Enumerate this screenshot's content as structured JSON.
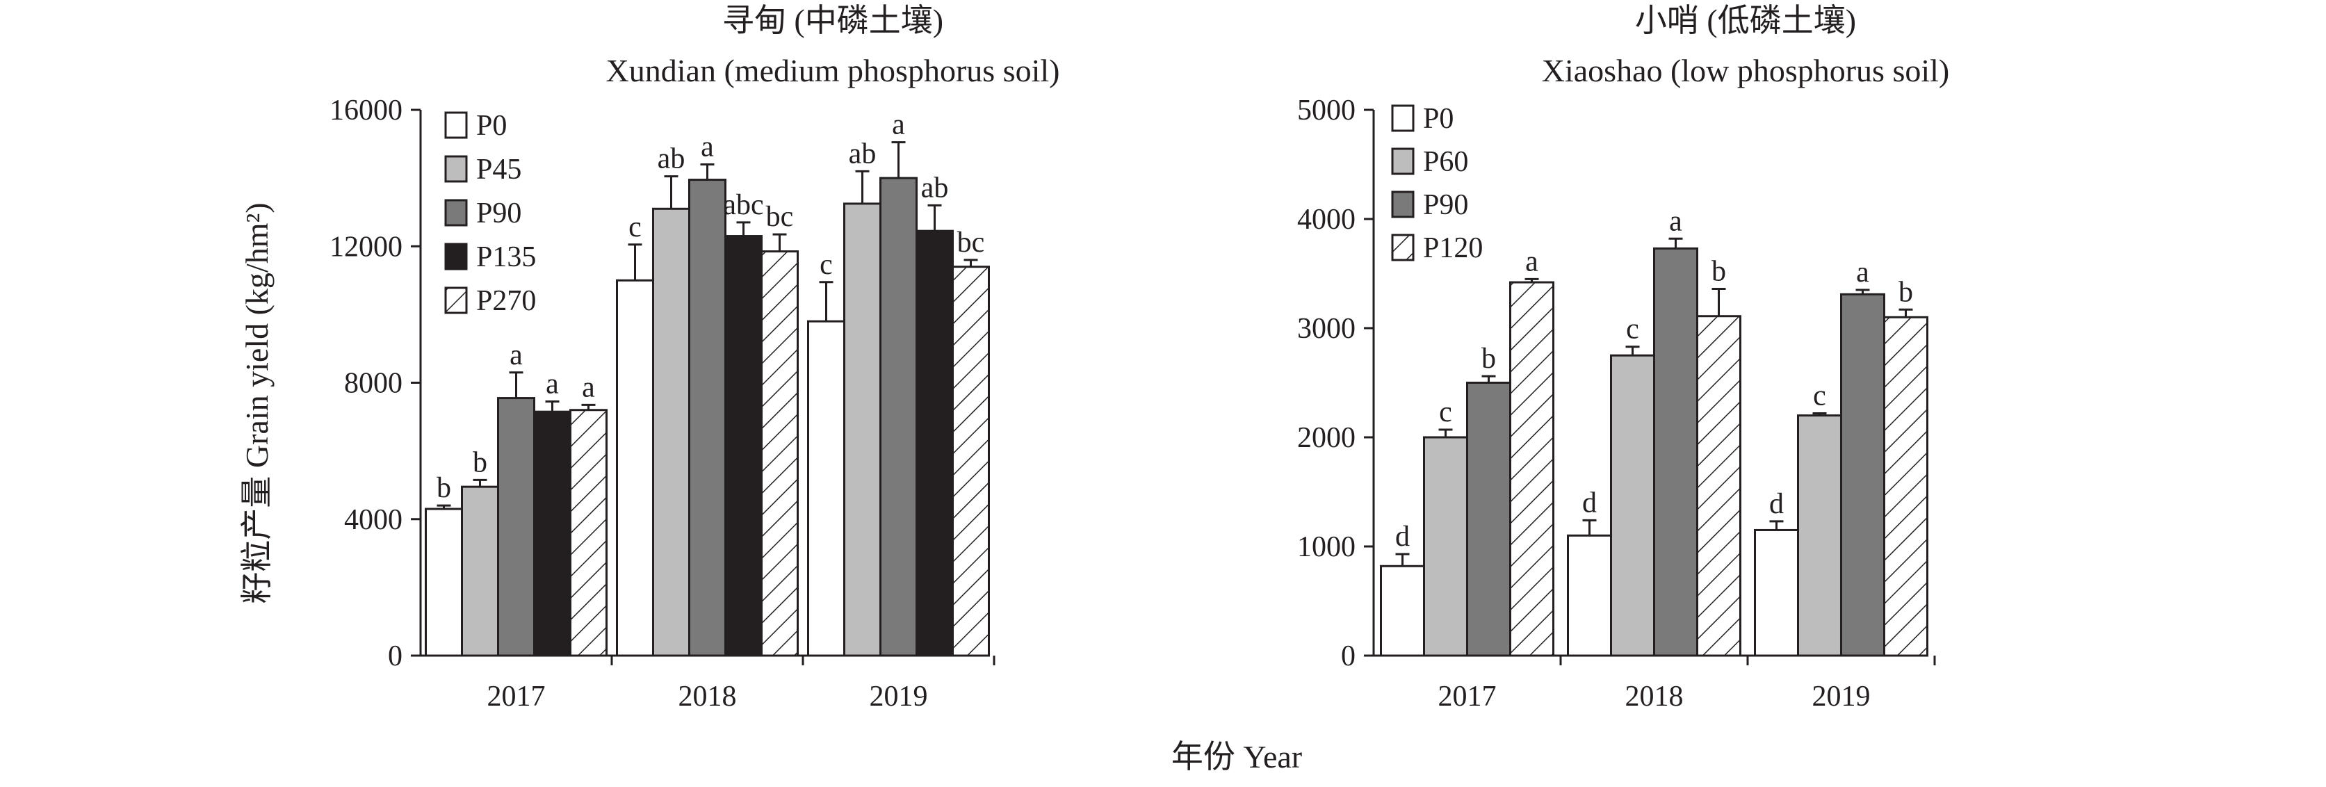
{
  "figure": {
    "shared_xlabel": "年份 Year",
    "shared_ylabel": "籽粒产量 Grain yield (kg/hm²)"
  },
  "chart_data": [
    {
      "type": "bar",
      "title": "寻甸 (中磷土壤)",
      "subtitle": "Xundian (medium phosphorus soil)",
      "xlabel": "年份 Year",
      "ylabel": "籽粒产量 Grain yield (kg/hm²)",
      "categories": [
        "2017",
        "2018",
        "2019"
      ],
      "ylim": [
        0,
        16000
      ],
      "yticks": [
        "0",
        "4000",
        "8000",
        "12000",
        "16000"
      ],
      "legend_position": "top-left",
      "series": [
        {
          "name": "P0",
          "fill": "white",
          "values": [
            4300,
            11000,
            9800
          ],
          "errors": [
            100,
            1050,
            1150
          ],
          "letters": [
            "b",
            "c",
            "c"
          ]
        },
        {
          "name": "P45",
          "fill": "lightgray",
          "values": [
            4950,
            13100,
            13250
          ],
          "errors": [
            200,
            950,
            950
          ],
          "letters": [
            "b",
            "ab",
            "ab"
          ]
        },
        {
          "name": "P90",
          "fill": "darkgray",
          "values": [
            7550,
            13950,
            14000
          ],
          "errors": [
            750,
            450,
            1050
          ],
          "letters": [
            "a",
            "a",
            "a"
          ]
        },
        {
          "name": "P135",
          "fill": "black",
          "values": [
            7150,
            12300,
            12450
          ],
          "errors": [
            300,
            400,
            750
          ],
          "letters": [
            "a",
            "abc",
            "ab"
          ]
        },
        {
          "name": "P270",
          "fill": "hatch",
          "values": [
            7200,
            11850,
            11400
          ],
          "errors": [
            150,
            500,
            200
          ],
          "letters": [
            "a",
            "bc",
            "bc"
          ]
        }
      ]
    },
    {
      "type": "bar",
      "title": "小哨 (低磷土壤)",
      "subtitle": "Xiaoshao (low phosphorus soil)",
      "xlabel": "年份 Year",
      "ylabel": "",
      "categories": [
        "2017",
        "2018",
        "2019"
      ],
      "ylim": [
        0,
        5000
      ],
      "yticks": [
        "0",
        "1000",
        "2000",
        "3000",
        "4000",
        "5000"
      ],
      "legend_position": "top-left",
      "series": [
        {
          "name": "P0",
          "fill": "white",
          "values": [
            820,
            1100,
            1150
          ],
          "errors": [
            110,
            140,
            80
          ],
          "letters": [
            "d",
            "d",
            "d"
          ]
        },
        {
          "name": "P60",
          "fill": "lightgray",
          "values": [
            2000,
            2750,
            2200
          ],
          "errors": [
            70,
            80,
            20
          ],
          "letters": [
            "c",
            "c",
            "c"
          ]
        },
        {
          "name": "P90",
          "fill": "darkgray",
          "values": [
            2500,
            3730,
            3310
          ],
          "errors": [
            60,
            90,
            40
          ],
          "letters": [
            "b",
            "a",
            "a"
          ]
        },
        {
          "name": "P120",
          "fill": "hatch",
          "values": [
            3420,
            3110,
            3100
          ],
          "errors": [
            30,
            250,
            70
          ],
          "letters": [
            "a",
            "b",
            "b"
          ]
        }
      ]
    }
  ],
  "colors": {
    "ink": "#231f20",
    "white": "#ffffff",
    "lightgray": "#bdbdbd",
    "darkgray": "#7a7a7a",
    "black": "#231f20"
  }
}
